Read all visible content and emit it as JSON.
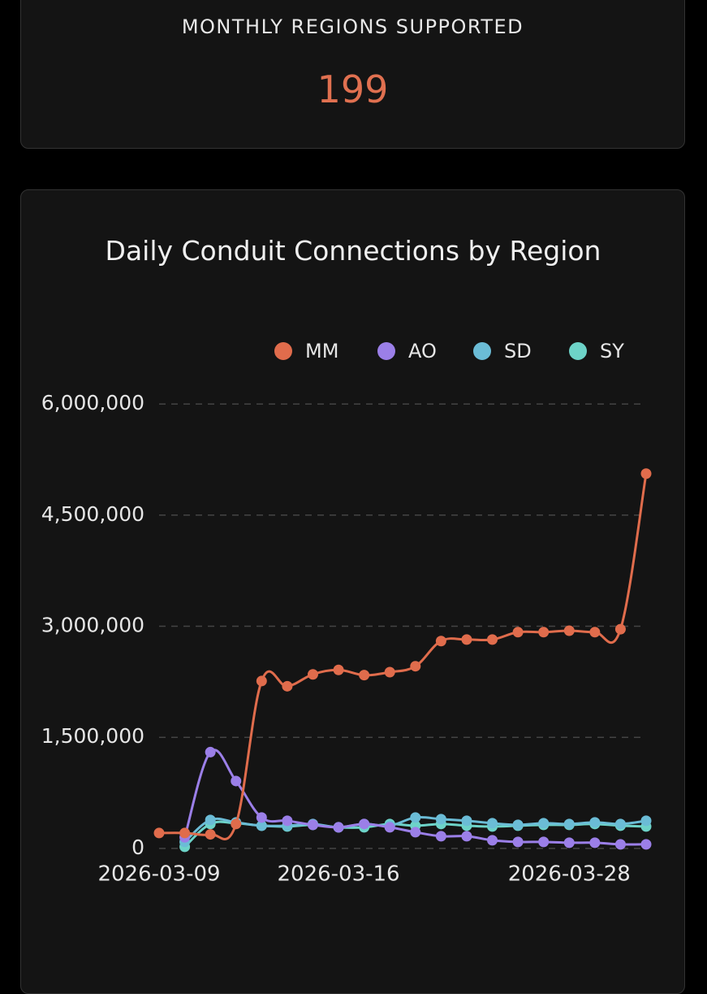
{
  "stat": {
    "label": "MONTHLY REGIONS SUPPORTED",
    "value": "199"
  },
  "chart_data": {
    "type": "line",
    "title": "Daily Conduit Connections by Region",
    "categories": [
      "2026-03-09",
      null,
      null,
      null,
      null,
      null,
      null,
      "2026-03-16",
      null,
      null,
      null,
      null,
      null,
      null,
      null,
      null,
      "2026-03-28",
      null,
      null,
      null
    ],
    "series": [
      {
        "name": "MM",
        "color": "#e06c4c",
        "values": [
          208000,
          208000,
          190000,
          330000,
          2260000,
          2190000,
          2350000,
          2410000,
          2340000,
          2380000,
          2460000,
          2800000,
          2820000,
          2820000,
          2920000,
          2920000,
          2940000,
          2920000,
          2960000,
          5060000
        ]
      },
      {
        "name": "AO",
        "color": "#9b7fe8",
        "values": [
          null,
          150000,
          1300000,
          910000,
          417000,
          373000,
          318000,
          285000,
          330000,
          285000,
          219000,
          165000,
          165000,
          110000,
          88000,
          88000,
          77000,
          77000,
          55000,
          55000
        ]
      },
      {
        "name": "SD",
        "color": "#6bbcd6",
        "values": [
          null,
          88000,
          384000,
          351000,
          307000,
          307000,
          330000,
          285000,
          330000,
          307000,
          417000,
          395000,
          373000,
          340000,
          318000,
          340000,
          330000,
          351000,
          330000,
          373000
        ]
      },
      {
        "name": "SY",
        "color": "#6dd3c8",
        "values": [
          null,
          22000,
          330000,
          340000,
          307000,
          296000,
          318000,
          285000,
          285000,
          330000,
          307000,
          330000,
          307000,
          296000,
          307000,
          318000,
          318000,
          330000,
          307000,
          296000
        ]
      }
    ],
    "ylim": [
      -100000,
      6100000
    ],
    "yticks": [
      0,
      {
        "value": 1500000,
        "label": "1,500,000"
      },
      {
        "value": 3000000,
        "label": "3,000,000"
      },
      {
        "value": 4500000,
        "label": "4,500,000"
      },
      {
        "value": 6000000,
        "label": "6,000,000"
      }
    ],
    "grid": true,
    "legend": "top"
  }
}
